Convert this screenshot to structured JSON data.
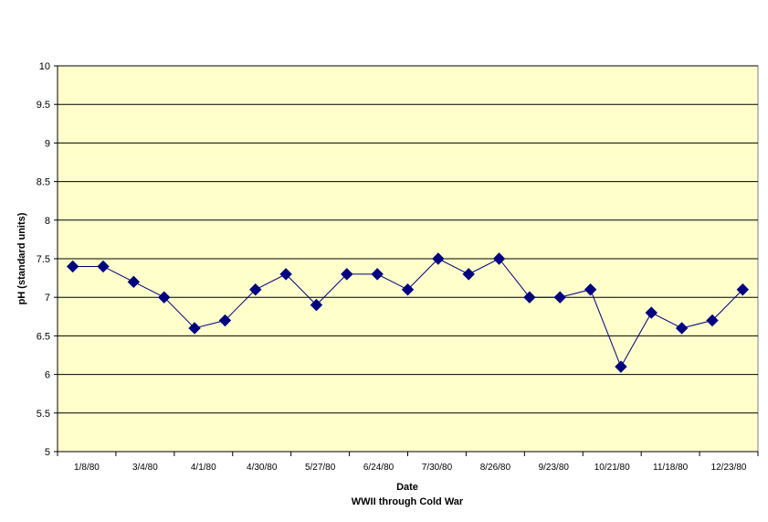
{
  "chart_data": {
    "type": "line",
    "xlabel": "Date",
    "xlabel_sub": "WWII through Cold War",
    "ylabel": "pH (standard units)",
    "ylim": [
      5,
      10
    ],
    "y_ticks": [
      "5",
      "5.5",
      "6",
      "6.5",
      "7",
      "7.5",
      "8",
      "8.5",
      "9",
      "9.5",
      "10"
    ],
    "x_tick_labels": [
      "1/8/80",
      "3/4/80",
      "4/1/80",
      "4/30/80",
      "5/27/80",
      "6/24/80",
      "7/30/80",
      "8/26/80",
      "9/23/80",
      "10/21/80",
      "11/18/80",
      "12/23/80"
    ],
    "grid": true,
    "legend": "none",
    "series": [
      {
        "values": [
          7.4,
          7.4,
          7.2,
          7.0,
          6.6,
          6.7,
          7.1,
          7.3,
          6.9,
          7.3,
          7.3,
          7.1,
          7.5,
          7.3,
          7.5,
          7.0,
          7.0,
          7.1,
          6.1,
          6.8,
          6.6,
          6.7,
          7.1
        ]
      }
    ],
    "colors": {
      "plot_background": "#FFFFCC",
      "gridline": "#000000",
      "line": "#000080",
      "marker": "#000080"
    }
  }
}
